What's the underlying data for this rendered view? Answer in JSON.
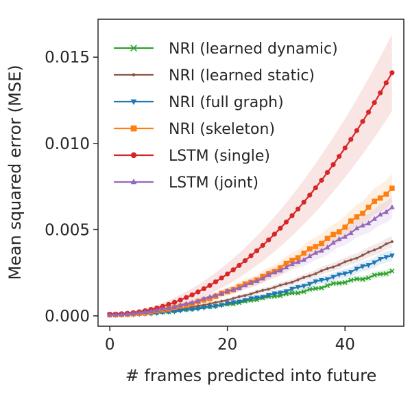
{
  "chart_data": {
    "type": "line",
    "title": "",
    "xlabel": "# frames predicted into future",
    "ylabel": "Mean squared error (MSE)",
    "xlim": [
      -2,
      50
    ],
    "ylim": [
      -0.0006,
      0.0172
    ],
    "xticks": [
      0,
      20,
      40
    ],
    "xtick_labels": [
      "0",
      "20",
      "40"
    ],
    "yticks": [
      0.0,
      0.005,
      0.01,
      0.015
    ],
    "ytick_labels": [
      "0.000",
      "0.005",
      "0.010",
      "0.015"
    ],
    "grid": false,
    "legend_position": "top-left",
    "x_range": [
      0,
      48
    ],
    "series": [
      {
        "name": "NRI (learned dynamic)",
        "color": "#2ca02c",
        "marker": "x",
        "start": 5e-05,
        "end": 0.0026,
        "exponent": 1.6,
        "band": 0.0002,
        "noise": 0.0001
      },
      {
        "name": "NRI (learned static)",
        "color": "#8c564b",
        "marker": "dot",
        "start": 5e-05,
        "end": 0.0043,
        "exponent": 1.8,
        "band": 0.0003,
        "noise": 5e-05
      },
      {
        "name": "NRI (full graph)",
        "color": "#1f77b4",
        "marker": "triangle-down",
        "start": 5e-05,
        "end": 0.0035,
        "exponent": 1.9,
        "band": 0.0003,
        "noise": 8e-05
      },
      {
        "name": "NRI (skeleton)",
        "color": "#ff7f0e",
        "marker": "square",
        "start": 6e-05,
        "end": 0.0074,
        "exponent": 1.95,
        "band": 0.0008,
        "noise": 0.00012
      },
      {
        "name": "LSTM (single)",
        "color": "#d62728",
        "marker": "circle",
        "start": 0.0001,
        "end": 0.0141,
        "exponent": 2.05,
        "band": 0.0022,
        "noise": 0.0
      },
      {
        "name": "LSTM (joint)",
        "color": "#9467bd",
        "marker": "triangle-up",
        "start": 6e-05,
        "end": 0.0063,
        "exponent": 1.75,
        "band": 0.0006,
        "noise": 0.0001
      }
    ]
  }
}
